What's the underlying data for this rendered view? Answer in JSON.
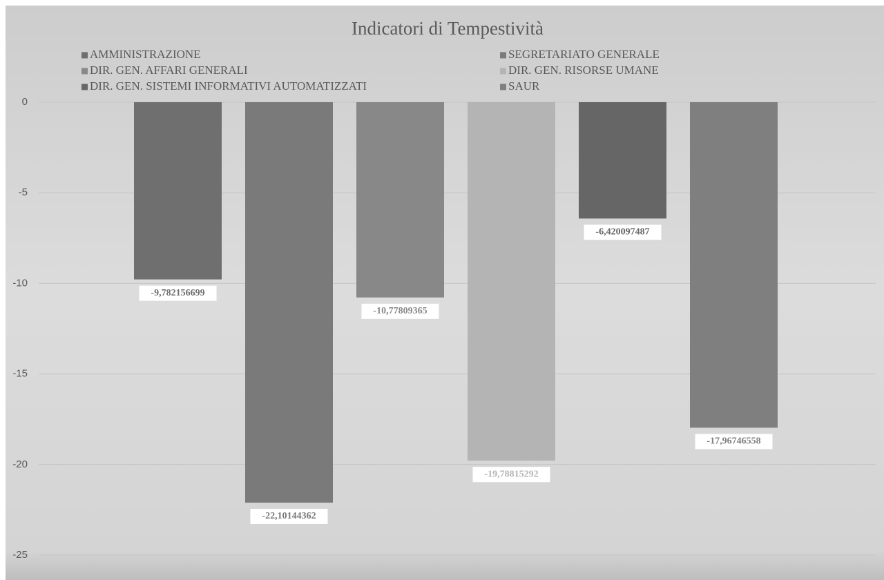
{
  "chart_data": {
    "type": "bar",
    "title": "Indicatori di Tempestività",
    "categories": [
      null
    ],
    "series": [
      {
        "name": "AMMINISTRAZIONE",
        "color": "#6f6f6f",
        "values": [
          -9.782156699
        ],
        "value_labels": [
          "-9,782156699"
        ]
      },
      {
        "name": "SEGRETARIATO GENERALE",
        "color": "#7a7a7a",
        "values": [
          -22.10144362
        ],
        "value_labels": [
          "-22,10144362"
        ]
      },
      {
        "name": "DIR. GEN. AFFARI GENERALI",
        "color": "#888888",
        "values": [
          -10.77809365
        ],
        "value_labels": [
          "-10,77809365"
        ]
      },
      {
        "name": "DIR. GEN. RISORSE UMANE",
        "color": "#b4b4b4",
        "values": [
          -19.78815292
        ],
        "value_labels": [
          "-19,78815292"
        ]
      },
      {
        "name": "DIR. GEN. SISTEMI INFORMATIVI AUTOMATIZZATI",
        "color": "#666666",
        "values": [
          -6.420097487
        ],
        "value_labels": [
          "-6,420097487"
        ]
      },
      {
        "name": "SAUR",
        "color": "#7f7f7f",
        "values": [
          -17.96746558
        ],
        "value_labels": [
          "-17,96746558"
        ]
      }
    ],
    "ylim": [
      -25,
      0
    ],
    "yticks": [
      0,
      -5,
      -10,
      -15,
      -20,
      -25
    ],
    "grid": true
  }
}
